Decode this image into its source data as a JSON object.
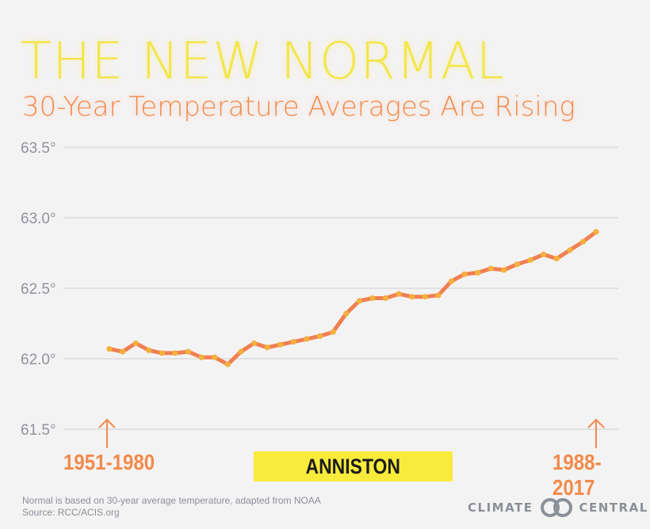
{
  "header": {
    "title": "THE NEW NORMAL",
    "subtitle": "30-Year Temperature Averages Are Rising"
  },
  "chart_data": {
    "type": "line",
    "title": "THE NEW NORMAL",
    "subtitle": "30-Year Temperature Averages Are Rising",
    "xlabel": "",
    "ylabel": "",
    "x_start_label": "1951-1980",
    "x_end_label": "1988-2017",
    "ylim": [
      61.5,
      63.5
    ],
    "yticks": [
      61.5,
      62.0,
      62.5,
      63.0,
      63.5
    ],
    "ytick_labels": [
      "61.5°",
      "62.0°",
      "62.5°",
      "63.0°",
      "63.5°"
    ],
    "grid": true,
    "series": [
      {
        "values": [
          62.07,
          62.05,
          62.11,
          62.06,
          62.04,
          62.04,
          62.05,
          62.01,
          62.01,
          61.96,
          62.05,
          62.11,
          62.08,
          62.1,
          62.12,
          62.14,
          62.16,
          62.19,
          62.32,
          62.41,
          62.43,
          62.43,
          62.46,
          62.44,
          62.44,
          62.45,
          62.55,
          62.6,
          62.61,
          62.64,
          62.63,
          62.67,
          62.7,
          62.74,
          62.71,
          62.77,
          62.83,
          62.9
        ]
      }
    ],
    "colors": {
      "line": "#f07f52",
      "markers": "#f3b13e",
      "grid": "#cfcfcf",
      "ticks": "#8e939c",
      "arrows": "#f28a4b"
    }
  },
  "location": "ANNISTON",
  "footnote": {
    "line1": "Normal is based on 30-year average temperature, adapted from NOAA",
    "line2": "Source: RCC/ACIS.org"
  },
  "logo": {
    "left": "CLIMATE",
    "right": "CENTRAL",
    "icon": "climate-central-rings-icon"
  }
}
